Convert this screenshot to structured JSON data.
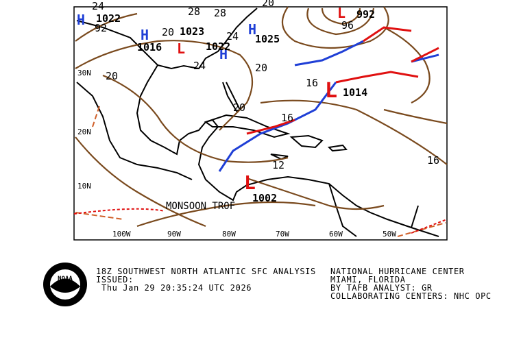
{
  "map": {
    "lat_labels": [
      "30N",
      "20N",
      "10N"
    ],
    "lon_labels": [
      "100W",
      "90W",
      "80W",
      "70W",
      "60W",
      "50W"
    ],
    "centers": [
      {
        "symbol": "H",
        "pressure": "1022"
      },
      {
        "symbol": "H",
        "pressure": "1016"
      },
      {
        "symbol": "L",
        "pressure": "1023"
      },
      {
        "symbol": "H",
        "pressure": "1022"
      },
      {
        "symbol": "H",
        "pressure": "1025"
      },
      {
        "symbol": "L",
        "pressure": "1014"
      },
      {
        "symbol": "L",
        "pressure": "1002"
      },
      {
        "symbol": "L",
        "pressure": "992"
      }
    ],
    "isobar_labels": [
      "24",
      "20",
      "16",
      "20",
      "24",
      "20",
      "16",
      "20",
      "24",
      "96",
      "92",
      "16",
      "12",
      "28",
      "28",
      "20"
    ],
    "features": [
      "MONSOON TROF"
    ]
  },
  "footer": {
    "left": [
      "18Z SOUTHWEST NORTH ATLANTIC SFC ANALYSIS",
      "ISSUED:",
      "Thu Jan 29 20:35:24 UTC 2026"
    ],
    "right": [
      "NATIONAL HURRICANE CENTER",
      "MIAMI, FLORIDA",
      "BY TAFB ANALYST: GR",
      "COLLABORATING CENTERS: NHC OPC"
    ],
    "logo": "NOAA"
  }
}
